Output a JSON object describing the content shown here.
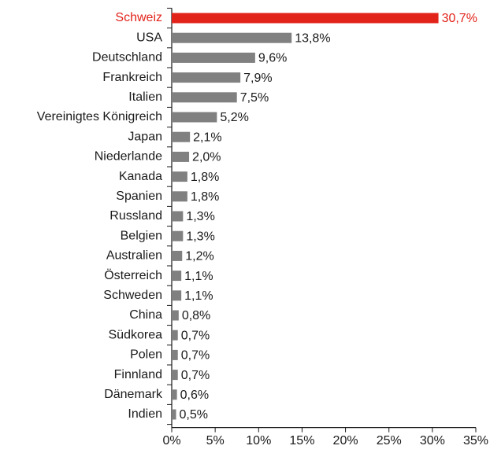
{
  "chart_data": {
    "type": "bar",
    "orientation": "horizontal",
    "categories": [
      "Schweiz",
      "USA",
      "Deutschland",
      "Frankreich",
      "Italien",
      "Vereinigtes Königreich",
      "Japan",
      "Niederlande",
      "Kanada",
      "Spanien",
      "Russland",
      "Belgien",
      "Australien",
      "Österreich",
      "Schweden",
      "China",
      "Südkorea",
      "Polen",
      "Finnland",
      "Dänemark",
      "Indien"
    ],
    "values": [
      30.7,
      13.8,
      9.6,
      7.9,
      7.5,
      5.2,
      2.1,
      2.0,
      1.8,
      1.8,
      1.3,
      1.3,
      1.2,
      1.1,
      1.1,
      0.8,
      0.7,
      0.7,
      0.7,
      0.6,
      0.5
    ],
    "value_labels": [
      "30,7%",
      "13,8%",
      "9,6%",
      "7,9%",
      "7,5%",
      "5,2%",
      "2,1%",
      "2,0%",
      "1,8%",
      "1,8%",
      "1,3%",
      "1,3%",
      "1,2%",
      "1,1%",
      "1,1%",
      "0,8%",
      "0,7%",
      "0,7%",
      "0,7%",
      "0,6%",
      "0,5%"
    ],
    "colors": [
      "#e2231a",
      "#808080",
      "#808080",
      "#808080",
      "#808080",
      "#808080",
      "#808080",
      "#808080",
      "#808080",
      "#808080",
      "#808080",
      "#808080",
      "#808080",
      "#808080",
      "#808080",
      "#808080",
      "#808080",
      "#808080",
      "#808080",
      "#808080",
      "#808080"
    ],
    "xlim": [
      0,
      35
    ],
    "xticks": [
      {
        "value": 0,
        "label": "0%"
      },
      {
        "value": 5,
        "label": "5%"
      },
      {
        "value": 10,
        "label": "10%"
      },
      {
        "value": 15,
        "label": "15%"
      },
      {
        "value": 20,
        "label": "20%"
      },
      {
        "value": 25,
        "label": "25%"
      },
      {
        "value": 30,
        "label": "30%"
      },
      {
        "value": 35,
        "label": "35%"
      }
    ]
  }
}
